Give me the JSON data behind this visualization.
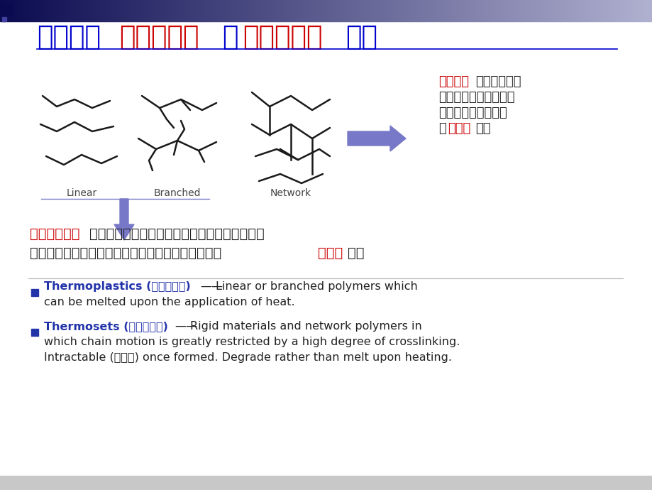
{
  "bg_color": "#f0f0ee",
  "body_bg": "#ffffff",
  "blue_color": "#0000cc",
  "red_color": "#cc0000",
  "black_color": "#222222",
  "bullet_color": "#2233aa",
  "arrow_color": "#7878c8",
  "header_dark": "#0a0a50",
  "header_mid": "#6060a0",
  "label_linear": "Linear",
  "label_branched": "Branched",
  "label_network": "Network"
}
